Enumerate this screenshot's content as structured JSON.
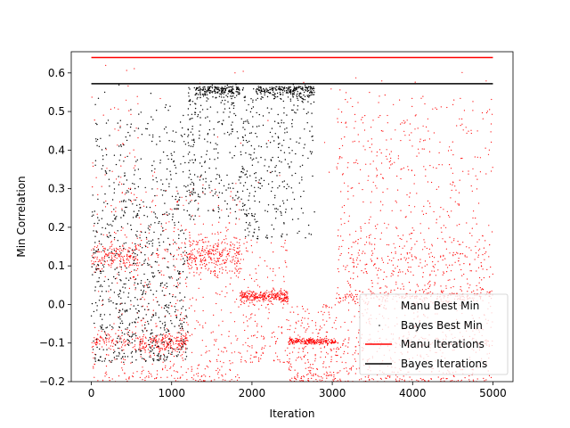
{
  "chart_data": {
    "type": "scatter",
    "xlabel": "Iteration",
    "ylabel": "Min Correlation",
    "xlim": [
      -250,
      5250
    ],
    "ylim": [
      -0.2,
      0.655
    ],
    "x_ticks": [
      0,
      1000,
      2000,
      3000,
      4000,
      5000
    ],
    "x_tick_labels": [
      "0",
      "1000",
      "2000",
      "3000",
      "4000",
      "5000"
    ],
    "y_ticks": [
      -0.2,
      -0.1,
      0.0,
      0.1,
      0.2,
      0.3,
      0.4,
      0.5,
      0.6
    ],
    "y_tick_labels": [
      "−0.2",
      "−0.1",
      "0.0",
      "0.1",
      "0.2",
      "0.3",
      "0.4",
      "0.5",
      "0.6"
    ],
    "legend_position": "lower-right",
    "series": [
      {
        "name": "Manu Best Min",
        "kind": "scatter",
        "color": "#ff0000",
        "approx_points": 5000,
        "clusters": [
          {
            "x_range": [
              0,
              500
            ],
            "y_center": 0.12,
            "y_spread": 0.02
          },
          {
            "x_range": [
              0,
              400
            ],
            "y_center": -0.09,
            "y_spread": 0.01
          },
          {
            "x_range": [
              600,
              1200
            ],
            "y_center": -0.1,
            "y_spread": 0.015
          },
          {
            "x_range": [
              1200,
              1850
            ],
            "y_center": 0.125,
            "y_spread": 0.025
          },
          {
            "x_range": [
              1850,
              2450
            ],
            "y_center": 0.02,
            "y_spread": 0.01
          },
          {
            "x_range": [
              2450,
              3050
            ],
            "y_center": -0.095,
            "y_spread": 0.005
          },
          {
            "x_range": [
              3050,
              5000
            ],
            "y_center": 0.01,
            "y_spread": 0.08
          }
        ]
      },
      {
        "name": "Bayes Best Min",
        "kind": "scatter",
        "color": "#000000",
        "approx_points": 2800,
        "x_range": [
          0,
          2780
        ],
        "plateau_y": 0.55
      },
      {
        "name": "Manu Iterations",
        "kind": "line",
        "color": "#ff0000",
        "x": [
          0,
          5000
        ],
        "y": [
          0.64,
          0.64
        ]
      },
      {
        "name": "Bayes Iterations",
        "kind": "line",
        "color": "#000000",
        "x": [
          0,
          5000
        ],
        "y": [
          0.572,
          0.572
        ]
      }
    ]
  }
}
